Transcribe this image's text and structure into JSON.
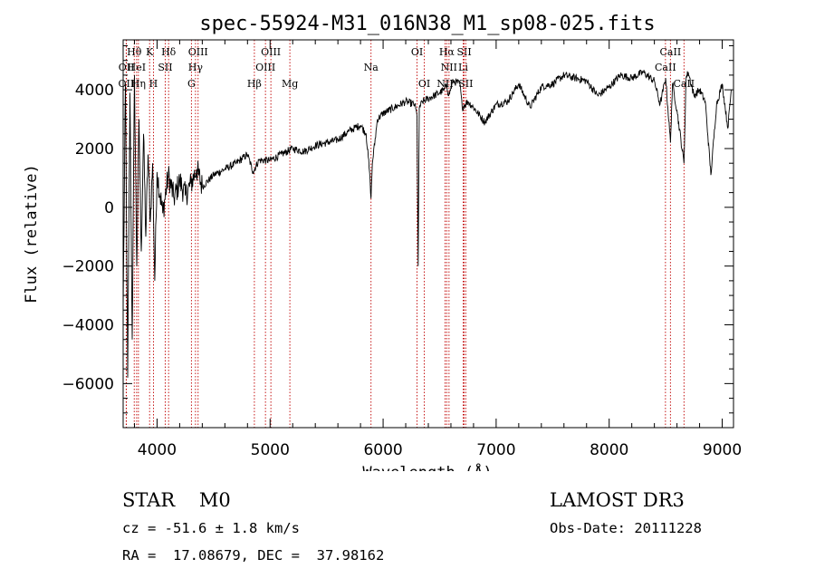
{
  "chart_data": {
    "type": "line",
    "title": "spec-55924-M31_016N38_M1_sp08-025.fits",
    "xlabel": "Wavelength (Å)",
    "ylabel": "Flux (relative)",
    "xlim": [
      3700,
      9100
    ],
    "ylim": [
      -7500,
      5700
    ],
    "xticks": [
      4000,
      5000,
      6000,
      7000,
      8000,
      9000
    ],
    "yticks": [
      -6000,
      -4000,
      -2000,
      0,
      2000,
      4000
    ],
    "grid": false,
    "series": [
      {
        "name": "flux",
        "x": [
          3700,
          3720,
          3740,
          3760,
          3780,
          3800,
          3820,
          3840,
          3860,
          3880,
          3900,
          3920,
          3940,
          3960,
          3980,
          4000,
          4050,
          4100,
          4150,
          4200,
          4250,
          4300,
          4350,
          4400,
          4500,
          4600,
          4700,
          4800,
          4850,
          4900,
          5000,
          5100,
          5200,
          5300,
          5400,
          5500,
          5600,
          5700,
          5800,
          5850,
          5880,
          5893,
          5905,
          5950,
          6000,
          6100,
          6200,
          6280,
          6300,
          6310,
          6320,
          6350,
          6400,
          6450,
          6500,
          6540,
          6563,
          6580,
          6620,
          6680,
          6700,
          6750,
          6800,
          6900,
          7000,
          7100,
          7150,
          7200,
          7300,
          7400,
          7500,
          7600,
          7700,
          7800,
          7900,
          8000,
          8100,
          8200,
          8300,
          8400,
          8450,
          8500,
          8542,
          8560,
          8600,
          8662,
          8680,
          8700,
          8750,
          8800,
          8850,
          8900,
          8950,
          9000,
          9050,
          9080
        ],
        "y": [
          -3500,
          4200,
          -5800,
          3900,
          -4500,
          4500,
          -2000,
          3000,
          -1500,
          2500,
          -1000,
          1800,
          -500,
          1500,
          -2500,
          1200,
          -200,
          1100,
          300,
          900,
          400,
          800,
          1300,
          700,
          1100,
          1300,
          1500,
          1800,
          1200,
          1600,
          1600,
          1800,
          2000,
          1900,
          2100,
          2200,
          2300,
          2600,
          2800,
          2500,
          1200,
          300,
          1500,
          3000,
          3200,
          3400,
          3600,
          3500,
          3100,
          -2000,
          3400,
          3600,
          3700,
          3800,
          3900,
          4000,
          4200,
          3800,
          4300,
          4200,
          3400,
          3600,
          3400,
          2900,
          3500,
          3600,
          3900,
          4200,
          3400,
          4100,
          4200,
          4500,
          4400,
          4300,
          3800,
          4100,
          4500,
          4400,
          4600,
          4300,
          3500,
          4400,
          2200,
          4200,
          3300,
          1500,
          4400,
          4600,
          3800,
          4000,
          3600,
          1100,
          3500,
          4200,
          2700,
          4000
        ]
      }
    ],
    "lines": [
      {
        "label": "Hθ",
        "x": 3798,
        "row": 1
      },
      {
        "label": "OII",
        "x": 3727,
        "row": 3
      },
      {
        "label": "OII",
        "x": 3729,
        "row": 2
      },
      {
        "label": "HeI",
        "x": 3819,
        "row": 2
      },
      {
        "label": "Hη",
        "x": 3835,
        "row": 3
      },
      {
        "label": "K",
        "x": 3934,
        "row": 1
      },
      {
        "label": "H",
        "x": 3968,
        "row": 3
      },
      {
        "label": "SII",
        "x": 4072,
        "row": 2
      },
      {
        "label": "Hδ",
        "x": 4102,
        "row": 1
      },
      {
        "label": "OIII",
        "x": 4363,
        "row": 1
      },
      {
        "label": "Hγ",
        "x": 4340,
        "row": 2
      },
      {
        "label": "G",
        "x": 4304,
        "row": 3
      },
      {
        "label": "Hβ",
        "x": 4861,
        "row": 3
      },
      {
        "label": "OIII",
        "x": 5007,
        "row": 1
      },
      {
        "label": "OIII",
        "x": 4959,
        "row": 2
      },
      {
        "label": "Mg",
        "x": 5175,
        "row": 3
      },
      {
        "label": "Na",
        "x": 5893,
        "row": 2
      },
      {
        "label": "OI",
        "x": 6300,
        "row": 1
      },
      {
        "label": "OI",
        "x": 6364,
        "row": 3
      },
      {
        "label": "Hα",
        "x": 6563,
        "row": 1
      },
      {
        "label": "SII",
        "x": 6717,
        "row": 1
      },
      {
        "label": "NII",
        "x": 6583,
        "row": 2
      },
      {
        "label": "Li",
        "x": 6708,
        "row": 2
      },
      {
        "label": "NII",
        "x": 6548,
        "row": 3
      },
      {
        "label": "SII",
        "x": 6731,
        "row": 3
      },
      {
        "label": "CaII",
        "x": 8542,
        "row": 1
      },
      {
        "label": "CaII",
        "x": 8498,
        "row": 2
      },
      {
        "label": "CaII",
        "x": 8662,
        "row": 3
      }
    ],
    "line_color": "#c00000"
  },
  "info": {
    "class_text": "STAR    M0",
    "survey_text": "LAMOST DR3",
    "cz_text": "cz = -51.6 ± 1.8 km/s",
    "obs_text": "Obs-Date: 20111228",
    "radec_text": "RA =  17.08679, DEC =  37.98162"
  }
}
